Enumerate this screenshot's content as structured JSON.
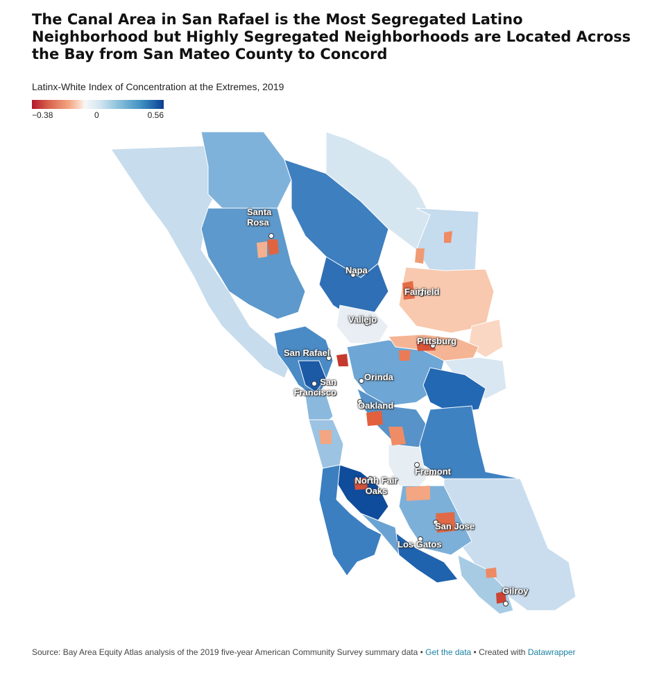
{
  "title": "The Canal Area in San Rafael is the Most Segregated Latino Neighborhood but Highly Segregated Neighborhoods are Located Across the Bay from San Mateo County to Concord",
  "subtitle": "Latinx-White Index of Concentration at the Extremes, 2019",
  "legend": {
    "min_label": "−0.38",
    "mid_label": "0",
    "max_label": "0.56",
    "min_value": -0.38,
    "mid_value": 0,
    "max_value": 0.56,
    "colors": [
      "#b2182b",
      "#f4a582",
      "#f7f7f7",
      "#92c5de",
      "#0b3d8f"
    ]
  },
  "cities": {
    "santa_rosa": "Santa Rosa",
    "napa": "Napa",
    "fairfield": "Fairfield",
    "vallejo": "Vallejo",
    "pittsburg": "Pittsburg",
    "san_rafael": "San Rafael",
    "orinda": "Orinda",
    "san_francisco": "San Francisco",
    "oakland": "Oakland",
    "fremont": "Fremont",
    "north_fair_oaks": "North Fair Oaks",
    "san_jose": "San Jose",
    "los_gatos": "Los Gatos",
    "gilroy": "Gilroy"
  },
  "footer": {
    "source_text": "Source: Bay Area Equity Atlas analysis of the 2019 five-year American Community Survey summary data",
    "separator": "•",
    "get_data_link": "Get the data",
    "created_with": "Created with",
    "datawrapper_link": "Datawrapper"
  }
}
